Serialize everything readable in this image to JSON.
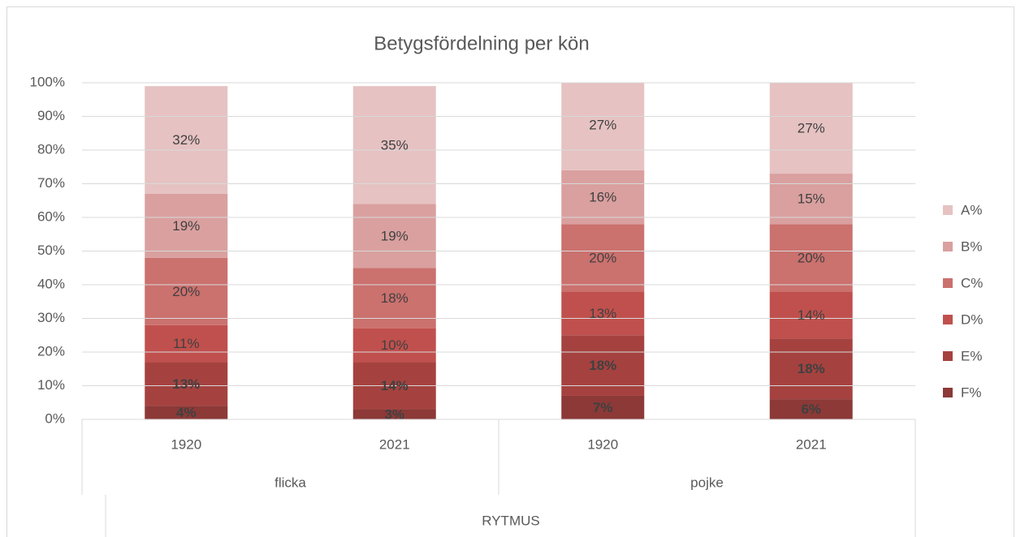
{
  "chart_data": {
    "type": "stacked_bar_100",
    "title": "Betygsfördelning per kön",
    "categories": [
      "1920",
      "2021",
      "1920",
      "2021"
    ],
    "groups": [
      "flicka",
      "pojke"
    ],
    "supergroup": "RYTMUS",
    "ylim": [
      0,
      100
    ],
    "yticks": [
      {
        "value": 0,
        "label": "0%"
      },
      {
        "value": 10,
        "label": "10%"
      },
      {
        "value": 20,
        "label": "20%"
      },
      {
        "value": 30,
        "label": "30%"
      },
      {
        "value": 40,
        "label": "40%"
      },
      {
        "value": 50,
        "label": "50%"
      },
      {
        "value": 60,
        "label": "60%"
      },
      {
        "value": 70,
        "label": "70%"
      },
      {
        "value": 80,
        "label": "80%"
      },
      {
        "value": 90,
        "label": "90%"
      },
      {
        "value": 100,
        "label": "100%"
      }
    ],
    "grid": true,
    "legend": "right",
    "series": [
      {
        "name": "F%",
        "color": "#8c3937",
        "values": [
          4,
          3,
          7,
          6
        ],
        "value_labels": [
          "4%",
          "3%",
          "7%",
          "6%"
        ]
      },
      {
        "name": "E%",
        "color": "#a5423f",
        "values": [
          13,
          14,
          18,
          18
        ],
        "value_labels": [
          "13%",
          "14%",
          "18%",
          "18%"
        ]
      },
      {
        "name": "D%",
        "color": "#c0504d",
        "values": [
          11,
          10,
          13,
          14
        ],
        "value_labels": [
          "11%",
          "10%",
          "13%",
          "14%"
        ]
      },
      {
        "name": "C%",
        "color": "#cb716e",
        "values": [
          20,
          18,
          20,
          20
        ],
        "value_labels": [
          "20%",
          "18%",
          "20%",
          "20%"
        ]
      },
      {
        "name": "B%",
        "color": "#d9a09f",
        "values": [
          19,
          19,
          16,
          15
        ],
        "value_labels": [
          "19%",
          "19%",
          "16%",
          "15%"
        ]
      },
      {
        "name": "A%",
        "color": "#e6c2c2",
        "values": [
          32,
          35,
          27,
          27
        ],
        "value_labels": [
          "32%",
          "35%",
          "27%",
          "27%"
        ]
      }
    ]
  }
}
